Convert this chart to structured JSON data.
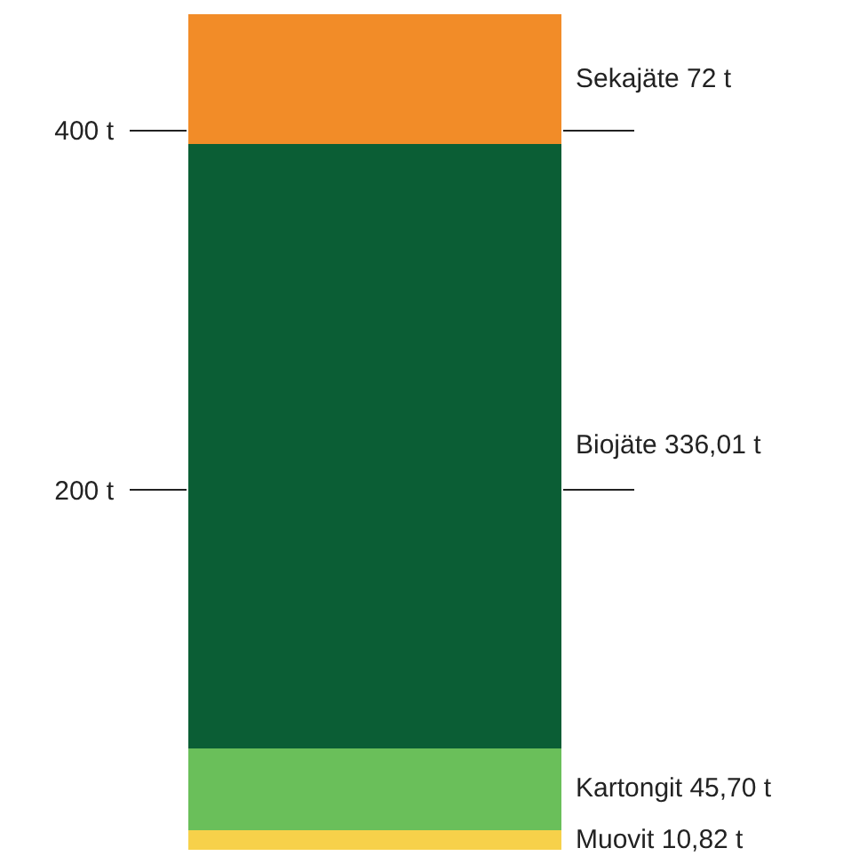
{
  "chart_data": {
    "type": "bar",
    "stacked": true,
    "categories": [
      null
    ],
    "series": [
      {
        "name": "Muovit",
        "color": "#f7d14a",
        "values": [
          10.82
        ],
        "value_labels": [
          "10,82 t"
        ]
      },
      {
        "name": "Kartongit",
        "color": "#6abf5a",
        "values": [
          45.7
        ],
        "value_labels": [
          "45,70 t"
        ]
      },
      {
        "name": "Biojäte",
        "color": "#0b5e35",
        "values": [
          336.01
        ],
        "value_labels": [
          "336,01 t"
        ]
      },
      {
        "name": "Sekajäte",
        "color": "#f28c28",
        "values": [
          72
        ],
        "value_labels": [
          "72 t"
        ]
      }
    ],
    "ylim": [
      0,
      464.53
    ],
    "yticks": [
      {
        "value": 200,
        "label": "200 t"
      },
      {
        "value": 400,
        "label": "400 t"
      }
    ],
    "legend": false,
    "tick_labels": "y"
  }
}
